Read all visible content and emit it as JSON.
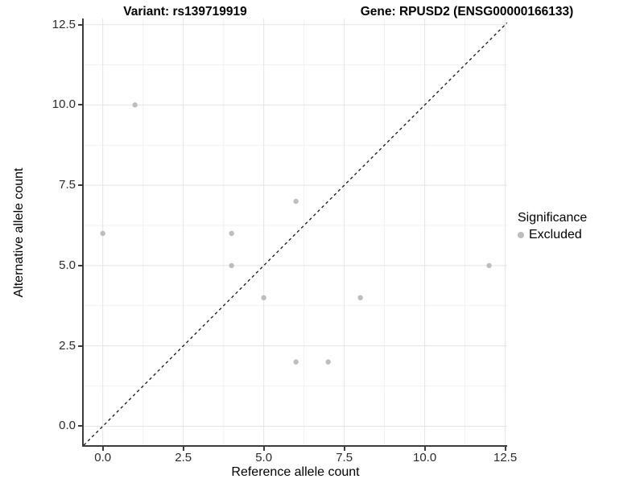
{
  "chart_data": {
    "type": "scatter",
    "title_left": "Variant: rs139719919",
    "title_right": "Gene: RPUSD2 (ENSG00000166133)",
    "xlabel": "Reference allele count",
    "ylabel": "Alternative allele count",
    "x_tick_labels": [
      "0.0",
      "2.5",
      "5.0",
      "7.5",
      "10.0",
      "12.5"
    ],
    "y_tick_labels": [
      "0.0",
      "2.5",
      "5.0",
      "7.5",
      "10.0",
      "12.5"
    ],
    "tick_values": [
      0,
      2.5,
      5,
      7.5,
      10,
      12.5
    ],
    "minor_tick_values": [
      1.25,
      3.75,
      6.25,
      8.75,
      11.25
    ],
    "xlim": [
      -0.5925,
      12.56
    ],
    "ylim": [
      -0.59,
      12.69
    ],
    "grid": true,
    "legend": {
      "title": "Significance",
      "position": "right",
      "entries": [
        {
          "label": "Excluded",
          "color": "#bdbdbd"
        }
      ]
    },
    "series": [
      {
        "name": "Excluded",
        "color": "#bdbdbd",
        "points": [
          [
            0,
            6
          ],
          [
            1,
            10
          ],
          [
            4,
            5
          ],
          [
            4,
            6
          ],
          [
            5,
            4
          ],
          [
            6,
            2
          ],
          [
            6,
            7
          ],
          [
            7,
            2
          ],
          [
            8,
            4
          ],
          [
            12,
            5
          ]
        ]
      }
    ],
    "reference_line": {
      "type": "identity",
      "style": "dashed",
      "color": "#141414"
    },
    "colors": {
      "background": "#ffffff",
      "axis_line": "#3d3d3d",
      "major_grid": "#e4e4e4",
      "minor_grid": "#f1f1f1",
      "point": "#bdbdbd"
    }
  }
}
